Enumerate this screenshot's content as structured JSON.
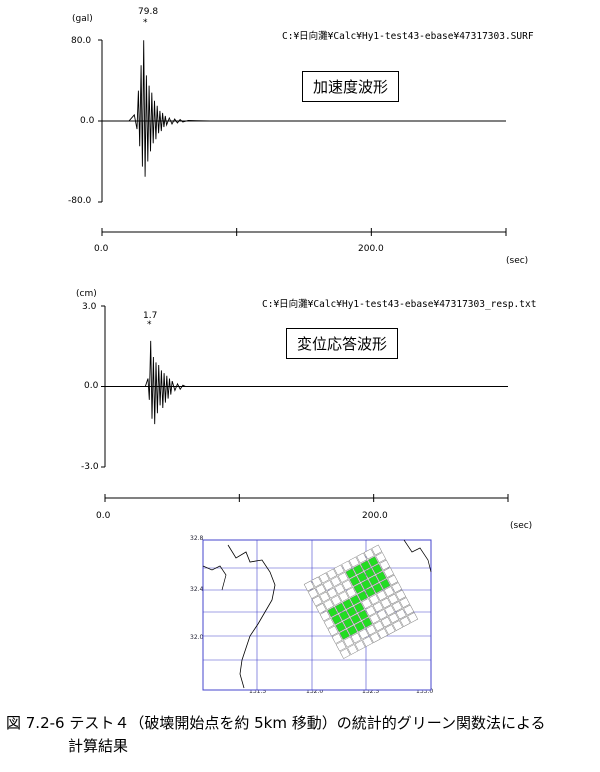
{
  "chart_data": [
    {
      "type": "line",
      "title": "加速度波形",
      "file_path": "C:¥日向灘¥Calc¥Hy1-test43-ebase¥47317303.SURF",
      "unit_label": "(gal)",
      "xlabel": "(sec)",
      "x_ticks": [
        "0.0",
        "200.0"
      ],
      "y_ticks": [
        "80.0",
        "0.0",
        "-80.0"
      ],
      "ylim": [
        -80,
        80
      ],
      "xlim": [
        0,
        300
      ],
      "peak_label": "79.8",
      "peak_marker": "*",
      "series": [
        {
          "x": [
            0,
            20,
            24,
            26,
            27,
            28,
            29,
            30,
            31,
            32,
            33,
            34,
            35,
            36,
            37,
            38,
            39,
            40,
            41,
            42,
            43,
            44,
            45,
            46,
            47,
            48,
            50,
            52,
            54,
            56,
            58,
            60,
            64,
            70,
            80,
            300
          ],
          "y": [
            0,
            0,
            6,
            -8,
            30,
            -25,
            55,
            -45,
            79.8,
            -55,
            45,
            -40,
            35,
            -30,
            28,
            -22,
            20,
            -18,
            15,
            -12,
            10,
            -10,
            8,
            -6,
            5,
            -4,
            3,
            -3,
            2,
            -2,
            1.5,
            -1,
            0.5,
            0.3,
            0,
            0
          ]
        }
      ]
    },
    {
      "type": "line",
      "title": "変位応答波形",
      "file_path": "C:¥日向灘¥Calc¥Hy1-test43-ebase¥47317303_resp.txt",
      "unit_label": "(cm)",
      "xlabel": "(sec)",
      "x_ticks": [
        "0.0",
        "200.0"
      ],
      "y_ticks": [
        "3.0",
        "0.0",
        "-3.0"
      ],
      "ylim": [
        -3,
        3
      ],
      "xlim": [
        0,
        300
      ],
      "peak_label": "1.7",
      "peak_marker": "*",
      "series": [
        {
          "x": [
            0,
            30,
            32,
            33,
            34,
            35,
            36,
            37,
            38,
            39,
            40,
            41,
            42,
            43,
            44,
            45,
            46,
            47,
            48,
            49,
            50,
            52,
            54,
            56,
            58,
            60,
            64,
            70,
            300
          ],
          "y": [
            0,
            0,
            0.3,
            -0.5,
            1.7,
            -1.2,
            1.1,
            -1.4,
            0.9,
            -1.0,
            0.8,
            -0.7,
            0.6,
            -0.8,
            0.5,
            -0.6,
            0.4,
            -0.45,
            0.3,
            -0.3,
            0.2,
            -0.15,
            0.1,
            -0.1,
            0.05,
            0,
            0,
            0,
            0
          ]
        }
      ]
    }
  ],
  "map": {
    "lat_ticks": [
      "32.8",
      "32.4",
      "32.0"
    ],
    "lon_ticks": [
      "131.5",
      "132.0",
      "132.5",
      "133.0"
    ],
    "epicenter_marker": "*",
    "fault_color": "#808080",
    "active_color": "#22dd22",
    "grid_color": "#4444cc",
    "coast_color": "#000000"
  },
  "caption": {
    "line1": "図 7.2-6  テスト４（破壊開始点を約 5km 移動）の統計的グリーン関数法による",
    "line2": "計算結果"
  }
}
